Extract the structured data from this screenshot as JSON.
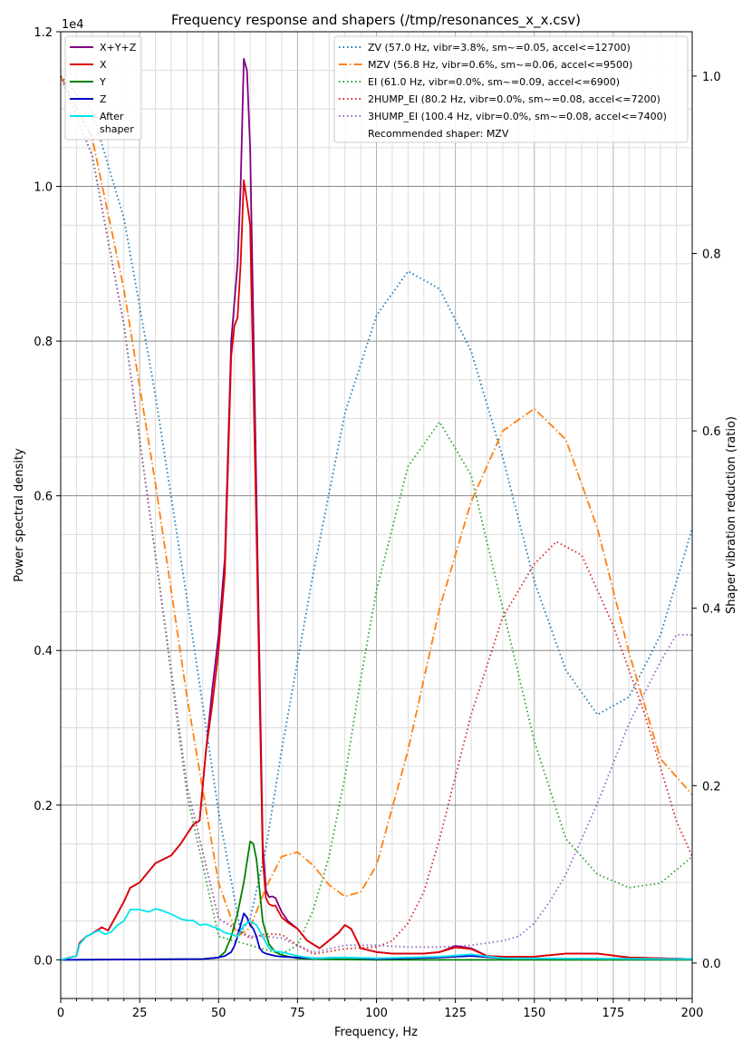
{
  "chart_data": {
    "type": "line",
    "title": "Frequency response and shapers (/tmp/resonances_x_x.csv)",
    "xlabel": "Frequency, Hz",
    "ylabel": "Power spectral density",
    "y2label": "Shaper vibration reduction (ratio)",
    "xlim": [
      0,
      200
    ],
    "ylim": [
      -0.05,
      1.2
    ],
    "y2lim": [
      -0.04,
      1.05
    ],
    "y_scale_label": "1e4",
    "x_ticks": [
      0,
      25,
      50,
      75,
      100,
      125,
      150,
      175,
      200
    ],
    "y_ticks": [
      0.0,
      0.2,
      0.4,
      0.6,
      0.8,
      1.0,
      1.2
    ],
    "y_tick_labels": [
      "0.0",
      "0.2",
      "0.4",
      "0.6",
      "0.8",
      "1.0",
      "1.2"
    ],
    "y2_ticks": [
      0.0,
      0.2,
      0.4,
      0.6,
      0.8,
      1.0
    ],
    "y2_tick_labels": [
      "0.0",
      "0.2",
      "0.4",
      "0.6",
      "0.8",
      "1.0"
    ],
    "grid": true,
    "legend_left_position": "top-left",
    "legend_right_position": "top-right",
    "psd_series": [
      {
        "name": "X+Y+Z",
        "color": "#800080",
        "style": "solid",
        "x": [
          0,
          5,
          6,
          8,
          10,
          13,
          15,
          18,
          20,
          22,
          25,
          28,
          30,
          35,
          38,
          42,
          44,
          46,
          48,
          50,
          52,
          54,
          55,
          56,
          57,
          58,
          59,
          60,
          62,
          64,
          65,
          66,
          67,
          68,
          70,
          72,
          75,
          78,
          80,
          82,
          85,
          88,
          90,
          92,
          95,
          100,
          105,
          110,
          115,
          120,
          125,
          130,
          135,
          140,
          150,
          160,
          170,
          180,
          190,
          200
        ],
        "y": [
          0,
          0.005,
          0.022,
          0.03,
          0.034,
          0.042,
          0.038,
          0.06,
          0.075,
          0.093,
          0.1,
          0.115,
          0.125,
          0.135,
          0.15,
          0.175,
          0.18,
          0.27,
          0.35,
          0.42,
          0.52,
          0.8,
          0.85,
          0.9,
          1.0,
          1.165,
          1.15,
          1.05,
          0.6,
          0.15,
          0.09,
          0.081,
          0.082,
          0.08,
          0.062,
          0.05,
          0.04,
          0.025,
          0.02,
          0.015,
          0.025,
          0.035,
          0.045,
          0.04,
          0.015,
          0.01,
          0.008,
          0.008,
          0.008,
          0.01,
          0.018,
          0.015,
          0.005,
          0.004,
          0.004,
          0.008,
          0.008,
          0.003,
          0.002,
          0.001
        ]
      },
      {
        "name": "X",
        "color": "#e00000",
        "style": "solid",
        "x": [
          0,
          5,
          6,
          8,
          10,
          13,
          15,
          18,
          20,
          22,
          25,
          28,
          30,
          35,
          38,
          42,
          44,
          46,
          48,
          50,
          52,
          54,
          55,
          56,
          57,
          58,
          59,
          60,
          62,
          64,
          65,
          66,
          67,
          68,
          70,
          72,
          75,
          78,
          80,
          82,
          85,
          88,
          90,
          92,
          95,
          100,
          105,
          110,
          115,
          120,
          125,
          130,
          135,
          140,
          150,
          160,
          170,
          180,
          190,
          200
        ],
        "y": [
          0,
          0.005,
          0.022,
          0.03,
          0.034,
          0.042,
          0.038,
          0.06,
          0.075,
          0.093,
          0.1,
          0.115,
          0.125,
          0.135,
          0.15,
          0.175,
          0.18,
          0.27,
          0.33,
          0.4,
          0.5,
          0.78,
          0.82,
          0.83,
          0.9,
          1.008,
          0.98,
          0.95,
          0.55,
          0.13,
          0.08,
          0.072,
          0.07,
          0.07,
          0.055,
          0.048,
          0.04,
          0.025,
          0.02,
          0.015,
          0.025,
          0.035,
          0.045,
          0.04,
          0.015,
          0.01,
          0.008,
          0.008,
          0.008,
          0.01,
          0.016,
          0.014,
          0.005,
          0.004,
          0.004,
          0.008,
          0.008,
          0.003,
          0.002,
          0.001
        ]
      },
      {
        "name": "Y",
        "color": "#008000",
        "style": "solid",
        "x": [
          0,
          45,
          50,
          52,
          54,
          56,
          58,
          60,
          61,
          62,
          64,
          66,
          68,
          70,
          75,
          80,
          100,
          200
        ],
        "y": [
          0,
          0.001,
          0.003,
          0.01,
          0.03,
          0.06,
          0.1,
          0.153,
          0.15,
          0.13,
          0.05,
          0.02,
          0.01,
          0.006,
          0.002,
          0.001,
          0.0,
          0.0
        ]
      },
      {
        "name": "Z",
        "color": "#0000cc",
        "style": "solid",
        "x": [
          0,
          45,
          50,
          52,
          54,
          55,
          56,
          57,
          58,
          59,
          60,
          61,
          62,
          63,
          64,
          65,
          66,
          68,
          70,
          75,
          80,
          90,
          100,
          120,
          130,
          140,
          200
        ],
        "y": [
          0,
          0.001,
          0.003,
          0.005,
          0.01,
          0.018,
          0.03,
          0.045,
          0.06,
          0.055,
          0.045,
          0.04,
          0.03,
          0.015,
          0.01,
          0.008,
          0.007,
          0.005,
          0.004,
          0.003,
          0.002,
          0.003,
          0.001,
          0.003,
          0.005,
          0.002,
          0.001
        ]
      },
      {
        "name": "After\nshaper",
        "color": "#00e5ee",
        "style": "solid",
        "x": [
          0,
          5,
          6,
          8,
          10,
          12,
          14,
          16,
          18,
          20,
          22,
          25,
          28,
          30,
          32,
          35,
          38,
          40,
          42,
          44,
          46,
          48,
          50,
          52,
          54,
          56,
          58,
          60,
          62,
          64,
          66,
          68,
          70,
          75,
          80,
          90,
          100,
          120,
          130,
          140,
          200
        ],
        "y": [
          0,
          0.005,
          0.02,
          0.03,
          0.034,
          0.038,
          0.033,
          0.036,
          0.045,
          0.05,
          0.065,
          0.065,
          0.062,
          0.066,
          0.064,
          0.059,
          0.053,
          0.051,
          0.051,
          0.045,
          0.046,
          0.043,
          0.04,
          0.035,
          0.033,
          0.03,
          0.045,
          0.05,
          0.045,
          0.03,
          0.015,
          0.011,
          0.01,
          0.005,
          0.002,
          0.003,
          0.002,
          0.004,
          0.007,
          0.002,
          0.001
        ]
      }
    ],
    "shaper_series": [
      {
        "name": "ZV (57.0 Hz, vibr=3.8%, sm~=0.05, accel<=12700)",
        "color": "#1f77b4",
        "style": "dotted",
        "x": [
          0,
          10,
          20,
          30,
          40,
          50,
          57,
          60,
          65,
          70,
          80,
          90,
          100,
          110,
          120,
          130,
          140,
          150,
          160,
          170,
          180,
          190,
          200
        ],
        "y": [
          1.0,
          0.96,
          0.84,
          0.64,
          0.41,
          0.17,
          0.035,
          0.05,
          0.13,
          0.24,
          0.44,
          0.62,
          0.73,
          0.78,
          0.76,
          0.69,
          0.57,
          0.43,
          0.33,
          0.28,
          0.3,
          0.37,
          0.49
        ]
      },
      {
        "name": "MZV (56.8 Hz, vibr=0.6%, sm~=0.06, accel<=9500)",
        "color": "#ff7f0e",
        "style": "dashdot",
        "x": [
          0,
          10,
          20,
          30,
          40,
          50,
          56,
          60,
          65,
          70,
          75,
          80,
          85,
          90,
          95,
          100,
          110,
          120,
          130,
          140,
          150,
          160,
          170,
          180,
          190,
          200
        ],
        "y": [
          1.0,
          0.93,
          0.76,
          0.54,
          0.3,
          0.09,
          0.03,
          0.04,
          0.085,
          0.12,
          0.125,
          0.11,
          0.088,
          0.075,
          0.08,
          0.11,
          0.24,
          0.4,
          0.52,
          0.6,
          0.625,
          0.59,
          0.49,
          0.35,
          0.23,
          0.19
        ]
      },
      {
        "name": "EI (61.0 Hz, vibr=0.0%, sm~=0.09, accel<=6900)",
        "color": "#2ca02c",
        "style": "dotted",
        "x": [
          0,
          10,
          20,
          30,
          40,
          50,
          55,
          60,
          65,
          70,
          75,
          80,
          85,
          90,
          95,
          100,
          110,
          120,
          130,
          140,
          150,
          160,
          170,
          180,
          190,
          200
        ],
        "y": [
          1.0,
          0.91,
          0.72,
          0.46,
          0.19,
          0.03,
          0.025,
          0.02,
          0.015,
          0.01,
          0.02,
          0.06,
          0.12,
          0.21,
          0.32,
          0.42,
          0.56,
          0.61,
          0.55,
          0.4,
          0.25,
          0.14,
          0.1,
          0.085,
          0.09,
          0.12
        ]
      },
      {
        "name": "2HUMP_EI (80.2 Hz, vibr=0.0%, sm~=0.08, accel<=7200)",
        "color": "#d62728",
        "style": "dotted",
        "x": [
          0,
          10,
          20,
          30,
          40,
          50,
          60,
          65,
          70,
          75,
          80,
          90,
          100,
          105,
          110,
          115,
          120,
          130,
          140,
          150,
          157,
          165,
          175,
          185,
          195,
          200
        ],
        "y": [
          1.0,
          0.91,
          0.72,
          0.46,
          0.2,
          0.05,
          0.028,
          0.033,
          0.032,
          0.02,
          0.01,
          0.016,
          0.018,
          0.025,
          0.045,
          0.08,
          0.14,
          0.28,
          0.39,
          0.45,
          0.475,
          0.46,
          0.38,
          0.28,
          0.16,
          0.12
        ]
      },
      {
        "name": "3HUMP_EI (100.4 Hz, vibr=0.0%, sm~=0.08, accel<=7400)",
        "color": "#9467bd",
        "style": "dotted",
        "x": [
          0,
          10,
          20,
          30,
          40,
          50,
          60,
          65,
          70,
          75,
          80,
          90,
          100,
          110,
          120,
          130,
          140,
          145,
          150,
          155,
          160,
          170,
          180,
          190,
          195,
          200
        ],
        "y": [
          1.0,
          0.91,
          0.72,
          0.46,
          0.2,
          0.05,
          0.03,
          0.03,
          0.028,
          0.02,
          0.012,
          0.02,
          0.02,
          0.018,
          0.018,
          0.02,
          0.025,
          0.03,
          0.045,
          0.07,
          0.1,
          0.18,
          0.27,
          0.34,
          0.37,
          0.37
        ]
      }
    ],
    "recommended_text": "Recommended shaper: MZV"
  }
}
